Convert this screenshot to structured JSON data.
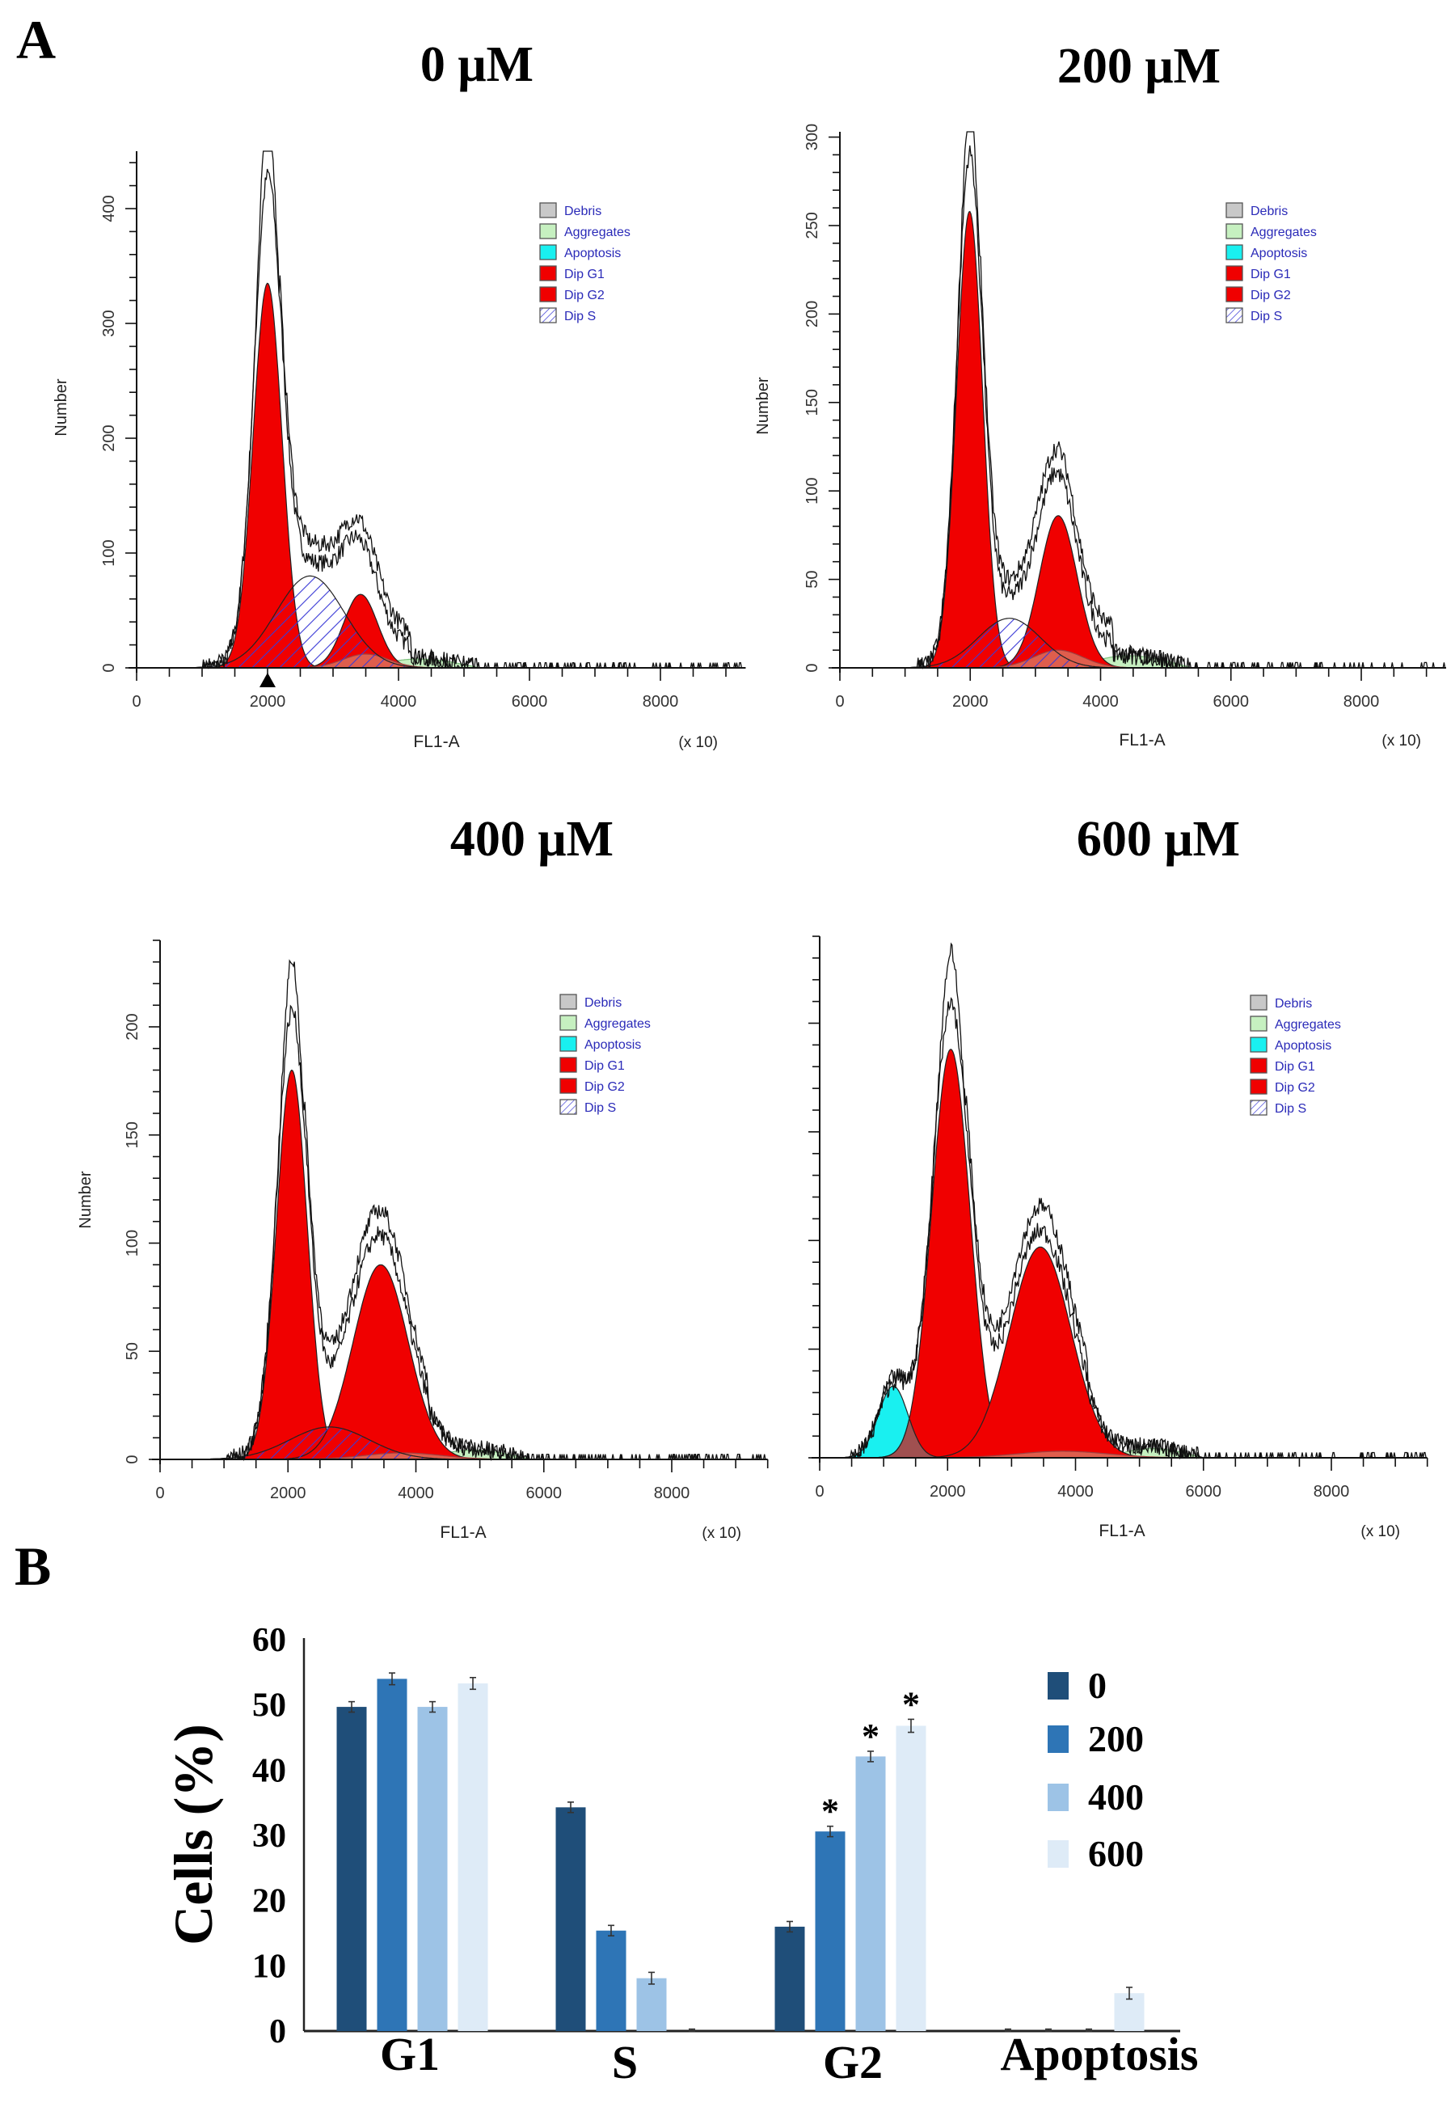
{
  "panel_labels": {
    "a": "A",
    "b": "B"
  },
  "chart_data": [
    {
      "type": "area",
      "title": "0 μM",
      "xlabel": "FL1-A",
      "xunit": "(x 10)",
      "ylabel": "Number",
      "xlim": [
        0,
        9300
      ],
      "ylim": [
        0,
        450
      ],
      "xticks": [
        "0",
        "2000",
        "4000",
        "6000",
        "8000"
      ],
      "yticks": [
        "0",
        "100",
        "200",
        "300",
        "400"
      ],
      "ytick_values": [
        0,
        100,
        200,
        300,
        400
      ],
      "yminor": 20,
      "marker_at": 2000,
      "legend": [
        "Debris",
        "Aggregates",
        "Apoptosis",
        "Dip G1",
        "Dip G2",
        "Dip S"
      ],
      "components": {
        "apoptosis": null,
        "g1": {
          "mean": 2000,
          "sd": 220,
          "peak": 335
        },
        "s": {
          "mean": 2650,
          "sd": 520,
          "peak": 80
        },
        "g2": {
          "mean": 3420,
          "sd": 260,
          "peak": 64
        },
        "tail": {
          "mean": 3500,
          "sd": 350,
          "peak": 12
        },
        "aggregates": {
          "start": 3800,
          "end": 7000,
          "peak": 9
        },
        "envelope_peak": 440
      }
    },
    {
      "type": "area",
      "title": "200 μM",
      "xlabel": "FL1-A",
      "xunit": "(x 10)",
      "ylabel": "Number",
      "xlim": [
        0,
        9300
      ],
      "ylim": [
        0,
        303
      ],
      "xticks": [
        "0",
        "2000",
        "4000",
        "6000",
        "8000"
      ],
      "yticks": [
        "0",
        "50",
        "100",
        "150",
        "200",
        "250",
        "300"
      ],
      "ytick_values": [
        0,
        50,
        100,
        150,
        200,
        250,
        300
      ],
      "yminor": 10,
      "legend": [
        "Debris",
        "Aggregates",
        "Apoptosis",
        "Dip G1",
        "Dip G2",
        "Dip S"
      ],
      "components": {
        "apoptosis": null,
        "g1": {
          "mean": 1990,
          "sd": 200,
          "peak": 258
        },
        "s": {
          "mean": 2600,
          "sd": 480,
          "peak": 28
        },
        "g2": {
          "mean": 3350,
          "sd": 290,
          "peak": 86
        },
        "tail": {
          "mean": 3350,
          "sd": 380,
          "peak": 10
        },
        "aggregates": {
          "start": 3900,
          "end": 7200,
          "peak": 8
        },
        "envelope_peak": 295
      }
    },
    {
      "type": "area",
      "title": "400 μM",
      "xlabel": "FL1-A",
      "xunit": "(x 10)",
      "ylabel": "Number",
      "xlim": [
        0,
        9500
      ],
      "ylim": [
        0,
        240
      ],
      "xticks": [
        "0",
        "2000",
        "4000",
        "6000",
        "8000"
      ],
      "yticks": [
        "0",
        "50",
        "100",
        "150",
        "200"
      ],
      "ytick_values": [
        0,
        50,
        100,
        150,
        200
      ],
      "yminor": 10,
      "legend": [
        "Debris",
        "Aggregates",
        "Apoptosis",
        "Dip G1",
        "Dip G2",
        "Dip S"
      ],
      "components": {
        "apoptosis": null,
        "g1": {
          "mean": 2060,
          "sd": 240,
          "peak": 180
        },
        "s": {
          "mean": 2650,
          "sd": 620,
          "peak": 15
        },
        "g2": {
          "mean": 3450,
          "sd": 430,
          "peak": 90
        },
        "tail": {
          "mean": 3800,
          "sd": 600,
          "peak": 3
        },
        "aggregates": {
          "start": 4400,
          "end": 7500,
          "peak": 5
        },
        "envelope_peak": 212
      }
    },
    {
      "type": "area",
      "title": "600 μM",
      "xlabel": "FL1-A",
      "xunit": "(x 10)",
      "ylabel": "",
      "xlim": [
        0,
        9500
      ],
      "ylim": [
        0,
        240
      ],
      "xticks": [
        "0",
        "2000",
        "4000",
        "6000",
        "8000"
      ],
      "yticks": [],
      "ytick_values": [
        0,
        50,
        100,
        150,
        200
      ],
      "yminor": 10,
      "legend": [
        "Debris",
        "Aggregates",
        "Apoptosis",
        "Dip G1",
        "Dip G2",
        "Dip S"
      ],
      "components": {
        "apoptosis": {
          "mean": 1150,
          "sd": 230,
          "peak": 33
        },
        "g1": {
          "mean": 2050,
          "sd": 300,
          "peak": 188
        },
        "s": null,
        "g2": {
          "mean": 3450,
          "sd": 480,
          "peak": 97
        },
        "tail": {
          "mean": 3800,
          "sd": 700,
          "peak": 3
        },
        "aggregates": {
          "start": 4800,
          "end": 7500,
          "peak": 5
        },
        "envelope_peak": 222
      }
    },
    {
      "type": "bar",
      "title": "",
      "ylabel": "Cells (%)",
      "xlabel": "",
      "ylim": [
        0,
        60
      ],
      "yticks": [
        "0",
        "10",
        "20",
        "30",
        "40",
        "50",
        "60"
      ],
      "categories": [
        "G1",
        "S",
        "G2",
        "Apoptosis"
      ],
      "series": [
        {
          "name": "0",
          "color": "#1f4e79",
          "values": [
            49.7,
            34.3,
            16.0,
            0.0
          ],
          "errors": [
            0.8,
            0.8,
            0.8,
            0.3
          ],
          "significant": [
            false,
            false,
            false,
            false
          ]
        },
        {
          "name": "200",
          "color": "#2e75b6",
          "values": [
            54.0,
            15.4,
            30.6,
            0.0
          ],
          "errors": [
            0.9,
            0.8,
            0.8,
            0.3
          ],
          "significant": [
            false,
            false,
            true,
            false
          ]
        },
        {
          "name": "400",
          "color": "#9dc3e6",
          "values": [
            49.7,
            8.1,
            42.1,
            0.0
          ],
          "errors": [
            0.8,
            0.9,
            0.8,
            0.3
          ],
          "significant": [
            false,
            false,
            true,
            false
          ]
        },
        {
          "name": "600",
          "color": "#deebf7",
          "values": [
            53.3,
            0.0,
            46.8,
            5.8
          ],
          "errors": [
            0.9,
            0.3,
            1.0,
            0.9
          ],
          "significant": [
            false,
            false,
            true,
            false
          ]
        }
      ],
      "significance_mark": "*",
      "legend_position": "top-right"
    }
  ]
}
